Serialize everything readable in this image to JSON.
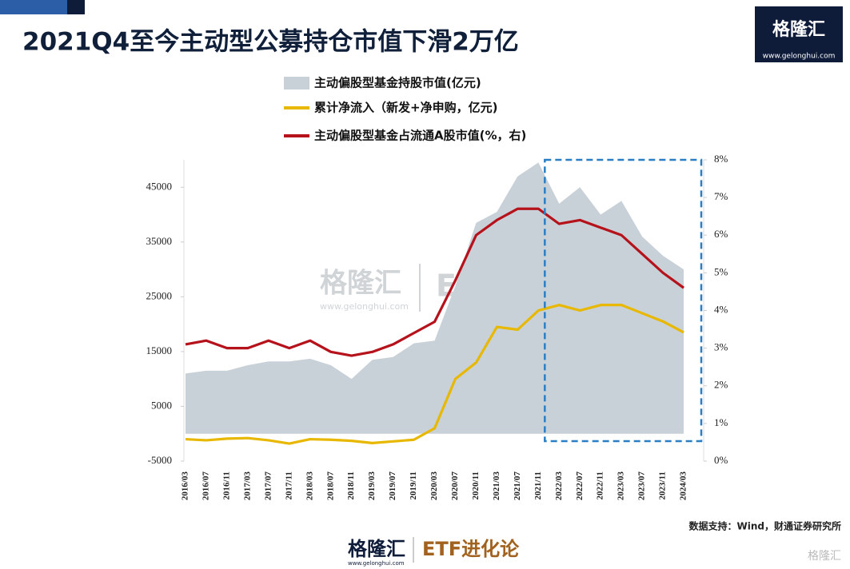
{
  "chart_data": {
    "type": "combo",
    "title": "2021Q4至今主动型公募持仓市值下滑2万亿",
    "logo": {
      "name": "格隆汇",
      "url": "www.gelonghui.com"
    },
    "watermark": "ETF进化论",
    "source": "数据支持：Wind，财通证券研究所",
    "categories": [
      "2016/03",
      "2016/07",
      "2016/11",
      "2017/03",
      "2017/07",
      "2017/11",
      "2018/03",
      "2018/07",
      "2018/11",
      "2019/03",
      "2019/07",
      "2019/11",
      "2020/03",
      "2020/07",
      "2020/11",
      "2021/03",
      "2021/07",
      "2021/11",
      "2022/03",
      "2022/07",
      "2022/11",
      "2023/03",
      "2023/07",
      "2023/11",
      "2024/03"
    ],
    "series": [
      {
        "name": "主动偏股型基金持股市值(亿元)",
        "type": "area",
        "color": "#c9d1d8",
        "values": [
          11000,
          11500,
          11500,
          12500,
          13200,
          13200,
          13700,
          12500,
          10000,
          13500,
          14000,
          16500,
          17000,
          27000,
          38500,
          40500,
          47000,
          49500,
          42000,
          45000,
          40000,
          42500,
          36000,
          32500,
          30000
        ]
      },
      {
        "name": "累计净流入（新发+净申购，亿元)",
        "type": "line",
        "color": "#e8b800",
        "values": [
          -1000,
          -1200,
          -900,
          -800,
          -1200,
          -1800,
          -1000,
          -1100,
          -1300,
          -1700,
          -1400,
          -1100,
          1000,
          10000,
          13000,
          19500,
          19000,
          22500,
          23500,
          22500,
          23500,
          23500,
          22000,
          20500,
          18500
        ]
      },
      {
        "name": "主动偏股型基金占流通A股市值(%，右)",
        "type": "line",
        "color": "#b5121b",
        "axis": "y2",
        "values": [
          3.1,
          3.2,
          3.0,
          3.0,
          3.2,
          3.0,
          3.2,
          2.9,
          2.8,
          2.9,
          3.1,
          3.4,
          3.7,
          4.8,
          6.0,
          6.4,
          6.7,
          6.7,
          6.3,
          6.4,
          6.2,
          6.0,
          5.5,
          5.0,
          4.6
        ]
      }
    ],
    "ylim": [
      -5000,
      50000
    ],
    "yticks": [
      -5000,
      5000,
      15000,
      25000,
      35000,
      45000
    ],
    "y2lim": [
      0,
      8
    ],
    "y2ticks": [
      {
        "value": 0,
        "label": "0%"
      },
      {
        "value": 1,
        "label": "1%"
      },
      {
        "value": 2,
        "label": "2%"
      },
      {
        "value": 3,
        "label": "3%"
      },
      {
        "value": 4,
        "label": "4%"
      },
      {
        "value": 5,
        "label": "5%"
      },
      {
        "value": 6,
        "label": "6%"
      },
      {
        "value": 7,
        "label": "7%"
      },
      {
        "value": 8,
        "label": "8%"
      }
    ]
  }
}
